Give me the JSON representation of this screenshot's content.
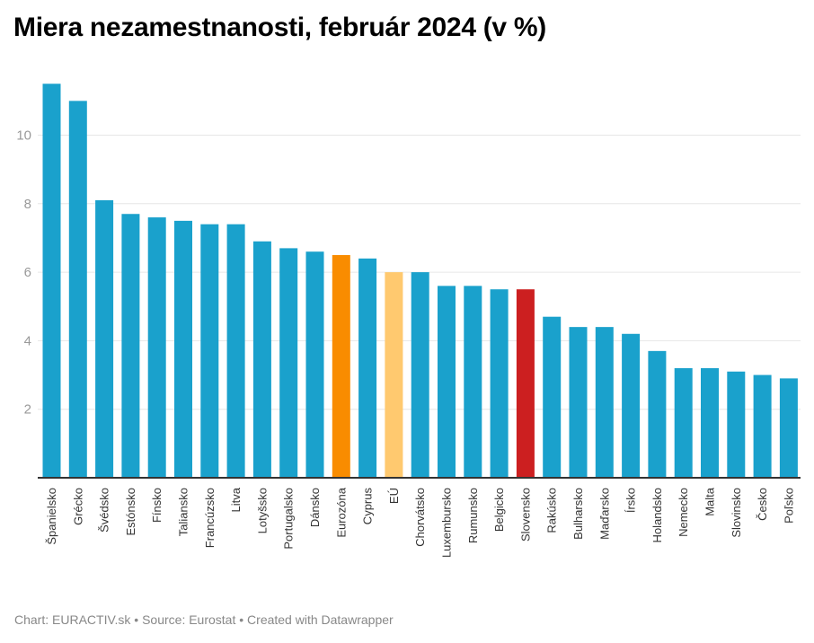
{
  "header": {
    "title": "Miera nezamestnanosti, február 2024 (v %)"
  },
  "footer": {
    "text": "Chart: EURACTIV.sk • Source: Eurostat • Created with Datawrapper"
  },
  "colors": {
    "default": "#1aa1cc",
    "eurozone": "#f98c00",
    "eu": "#ffc96f",
    "slovakia": "#cc1f20",
    "grid": "#e6e6e6",
    "axis": "#333333",
    "tick_text": "#999999"
  },
  "chart_data": {
    "type": "bar",
    "title": "Miera nezamestnanosti, február 2024 (v %)",
    "xlabel": "",
    "ylabel": "",
    "ylim": [
      0,
      11.5
    ],
    "yticks": [
      2,
      4,
      6,
      8,
      10
    ],
    "grid": true,
    "legend": "none",
    "categories": [
      "Španielsko",
      "Grécko",
      "Švédsko",
      "Estónsko",
      "Fínsko",
      "Taliansko",
      "Francúzsko",
      "Litva",
      "Lotyšsko",
      "Portugalsko",
      "Dánsko",
      "Eurozóna",
      "Cyprus",
      "EÚ",
      "Chorvátsko",
      "Luxembursko",
      "Rumunsko",
      "Belgicko",
      "Slovensko",
      "Rakúsko",
      "Bulharsko",
      "Maďarsko",
      "Írsko",
      "Holandsko",
      "Nemecko",
      "Malta",
      "Slovinsko",
      "Česko",
      "Poľsko"
    ],
    "values": [
      11.5,
      11.0,
      8.1,
      7.7,
      7.6,
      7.5,
      7.4,
      7.4,
      6.9,
      6.7,
      6.6,
      6.5,
      6.4,
      6.0,
      6.0,
      5.6,
      5.6,
      5.5,
      5.5,
      4.7,
      4.4,
      4.4,
      4.2,
      3.7,
      3.2,
      3.2,
      3.1,
      3.0,
      2.9
    ],
    "highlights": {
      "Eurozóna": "eurozone",
      "EÚ": "eu",
      "Slovensko": "slovakia"
    }
  }
}
